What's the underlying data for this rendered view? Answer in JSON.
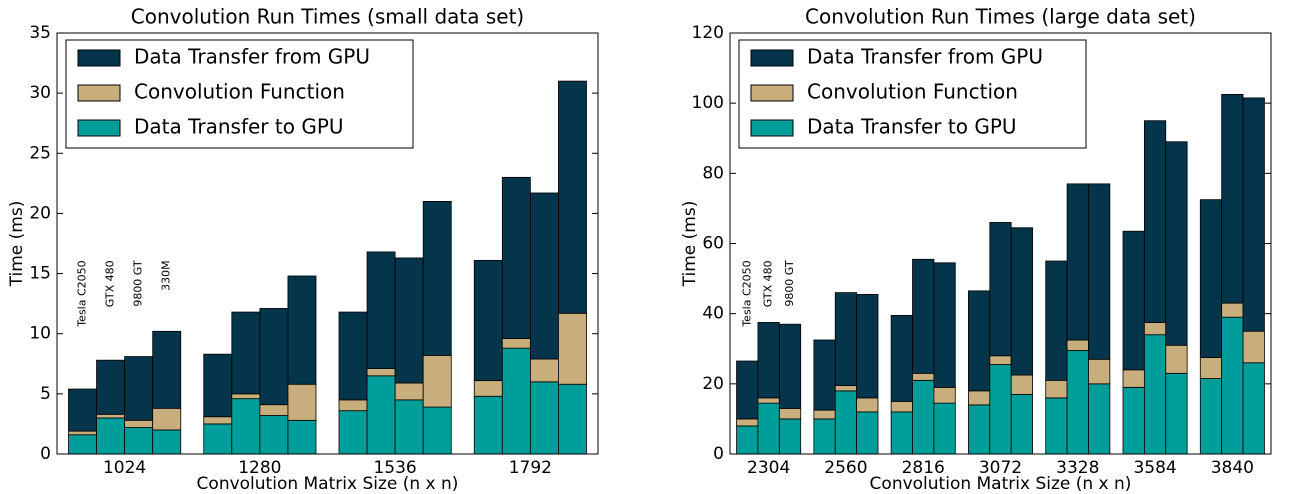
{
  "chart_data": [
    {
      "type": "bar",
      "stacked": true,
      "title": "Convolution Run Times (small data set)",
      "xlabel": "Convolution Matrix Size (n x n)",
      "ylabel": "Time (ms)",
      "categories": [
        "1024",
        "1280",
        "1536",
        "1792"
      ],
      "bar_labels": [
        "Tesla C2050",
        "GTX 480",
        "9800 GT",
        "330M"
      ],
      "series": [
        {
          "name": "Data Transfer to GPU",
          "color": "#009e9a",
          "values": [
            [
              1.6,
              3.0,
              2.2,
              2.0
            ],
            [
              2.5,
              4.6,
              3.2,
              2.8
            ],
            [
              3.6,
              6.5,
              4.5,
              3.9
            ],
            [
              4.8,
              8.8,
              6.0,
              5.8
            ]
          ]
        },
        {
          "name": "Convolution Function",
          "color": "#c8ae7d",
          "values": [
            [
              0.3,
              0.3,
              0.6,
              1.8
            ],
            [
              0.6,
              0.4,
              0.9,
              3.0
            ],
            [
              0.9,
              0.6,
              1.4,
              4.3
            ],
            [
              1.3,
              0.8,
              1.9,
              5.9
            ]
          ]
        },
        {
          "name": "Data Transfer from GPU",
          "color": "#05354a",
          "values": [
            [
              3.5,
              4.5,
              5.3,
              6.4
            ],
            [
              5.2,
              6.8,
              8.0,
              9.0
            ],
            [
              7.3,
              9.7,
              10.4,
              12.8
            ],
            [
              10.0,
              13.4,
              13.8,
              19.3
            ]
          ]
        }
      ],
      "ylim": [
        0,
        35
      ],
      "yticks": [
        0,
        5,
        10,
        15,
        20,
        25,
        30,
        35
      ],
      "legend": "upper left"
    },
    {
      "type": "bar",
      "stacked": true,
      "title": "Convolution Run Times (large data set)",
      "xlabel": "Convolution Matrix Size (n x n)",
      "ylabel": "Time (ms)",
      "categories": [
        "2304",
        "2560",
        "2816",
        "3072",
        "3328",
        "3584",
        "3840"
      ],
      "bar_labels": [
        "Tesla C2050",
        "GTX 480",
        "9800 GT"
      ],
      "series": [
        {
          "name": "Data Transfer to GPU",
          "color": "#009e9a",
          "values": [
            [
              8,
              14.5,
              10
            ],
            [
              10,
              18,
              12
            ],
            [
              12,
              21,
              14.5
            ],
            [
              14,
              25.5,
              17
            ],
            [
              16,
              29.5,
              20
            ],
            [
              19,
              34,
              23
            ],
            [
              21.5,
              39,
              26
            ]
          ]
        },
        {
          "name": "Convolution Function",
          "color": "#c8ae7d",
          "values": [
            [
              2,
              1.5,
              3
            ],
            [
              2.5,
              1.5,
              4
            ],
            [
              3,
              2,
              4.5
            ],
            [
              4,
              2.5,
              5.5
            ],
            [
              5,
              3,
              7
            ],
            [
              5,
              3.5,
              8
            ],
            [
              6,
              4,
              9
            ]
          ]
        },
        {
          "name": "Data Transfer from GPU",
          "color": "#05354a",
          "values": [
            [
              16.5,
              21.5,
              24
            ],
            [
              20,
              26.5,
              29.5
            ],
            [
              24.5,
              32.5,
              35.5
            ],
            [
              28.5,
              38,
              42
            ],
            [
              34,
              44.5,
              50
            ],
            [
              39.5,
              57.5,
              58
            ],
            [
              45,
              59.5,
              66.5
            ]
          ]
        }
      ],
      "ylim": [
        0,
        120
      ],
      "yticks": [
        0,
        20,
        40,
        60,
        80,
        100,
        120
      ],
      "legend": "upper left"
    }
  ]
}
